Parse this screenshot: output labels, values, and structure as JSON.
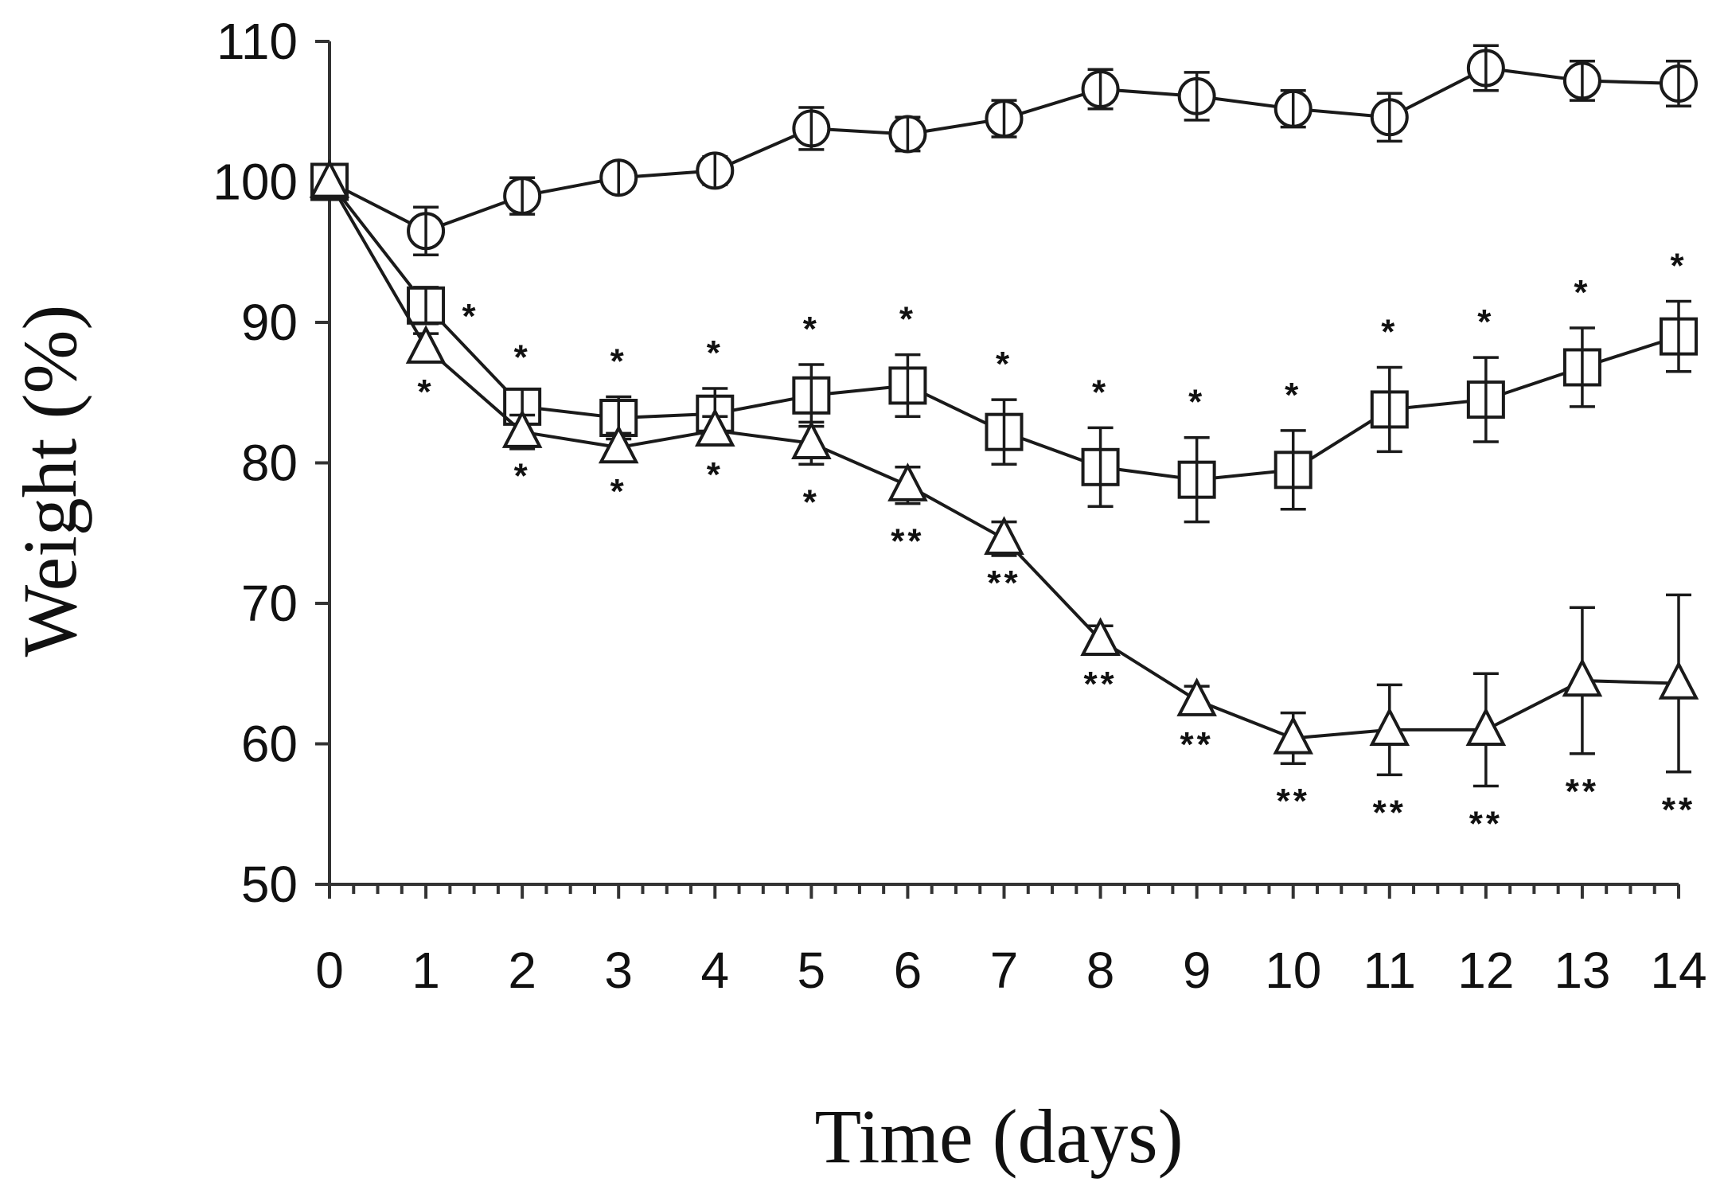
{
  "chart_data": {
    "type": "line",
    "xlabel": "Time (days)",
    "ylabel": "Weight (%)",
    "xlim": [
      0,
      14
    ],
    "ylim": [
      50,
      110
    ],
    "xticks": [
      0,
      1,
      2,
      3,
      4,
      5,
      6,
      7,
      8,
      9,
      10,
      11,
      12,
      13,
      14
    ],
    "yticks": [
      50,
      60,
      70,
      80,
      90,
      100,
      110
    ],
    "grid": false,
    "legend": "none",
    "colors": {
      "line": "#1a1a1a",
      "marker_fill": "#ffffff",
      "axis": "#333333"
    },
    "series": [
      {
        "name": "circle",
        "marker": "circle",
        "x": [
          0,
          1,
          2,
          3,
          4,
          5,
          6,
          7,
          8,
          9,
          10,
          11,
          12,
          13,
          14
        ],
        "values": [
          100,
          96.5,
          99,
          100.3,
          100.8,
          103.8,
          103.4,
          104.5,
          106.6,
          106.1,
          105.2,
          104.6,
          108.1,
          107.2,
          107
        ],
        "errors": [
          0,
          1.7,
          1.3,
          0.9,
          1.0,
          1.5,
          1.2,
          1.3,
          1.4,
          1.7,
          1.3,
          1.7,
          1.6,
          1.4,
          1.6
        ],
        "sig": [
          "",
          "",
          "",
          "",
          "",
          "",
          "",
          "",
          "",
          "",
          "",
          "",
          "",
          "",
          ""
        ]
      },
      {
        "name": "square",
        "marker": "square",
        "x": [
          0,
          1,
          2,
          3,
          4,
          5,
          6,
          7,
          8,
          9,
          10,
          11,
          12,
          13,
          14
        ],
        "values": [
          100,
          91.2,
          84,
          83.2,
          83.5,
          84.8,
          85.5,
          82.2,
          79.7,
          78.8,
          79.5,
          83.8,
          84.5,
          86.8,
          89
        ],
        "errors": [
          0,
          1.3,
          1.0,
          1.5,
          1.8,
          2.2,
          2.2,
          2.3,
          2.8,
          3.0,
          2.8,
          3.0,
          3.0,
          2.8,
          2.5
        ],
        "sig": [
          "",
          "*",
          "*",
          "*",
          "*",
          "*",
          "*",
          "*",
          "*",
          "*",
          "*",
          "*",
          "*",
          "*",
          "*"
        ]
      },
      {
        "name": "triangle",
        "marker": "triangle",
        "x": [
          0,
          1,
          2,
          3,
          4,
          5,
          6,
          7,
          8,
          9,
          10,
          11,
          12,
          13,
          14
        ],
        "values": [
          100,
          88.2,
          82.2,
          81.1,
          82.3,
          81.4,
          78.4,
          74.6,
          67.4,
          63.1,
          60.4,
          61,
          61,
          64.5,
          64.3
        ],
        "errors": [
          0,
          1.0,
          1.2,
          1.0,
          1.0,
          1.5,
          1.3,
          1.2,
          1.0,
          1.0,
          1.8,
          3.2,
          4.0,
          5.2,
          6.3
        ],
        "sig": [
          "",
          "*",
          "*",
          "*",
          "*",
          "*",
          "**",
          "**",
          "**",
          "**",
          "**",
          "**",
          "**",
          "**",
          "**"
        ]
      }
    ]
  }
}
